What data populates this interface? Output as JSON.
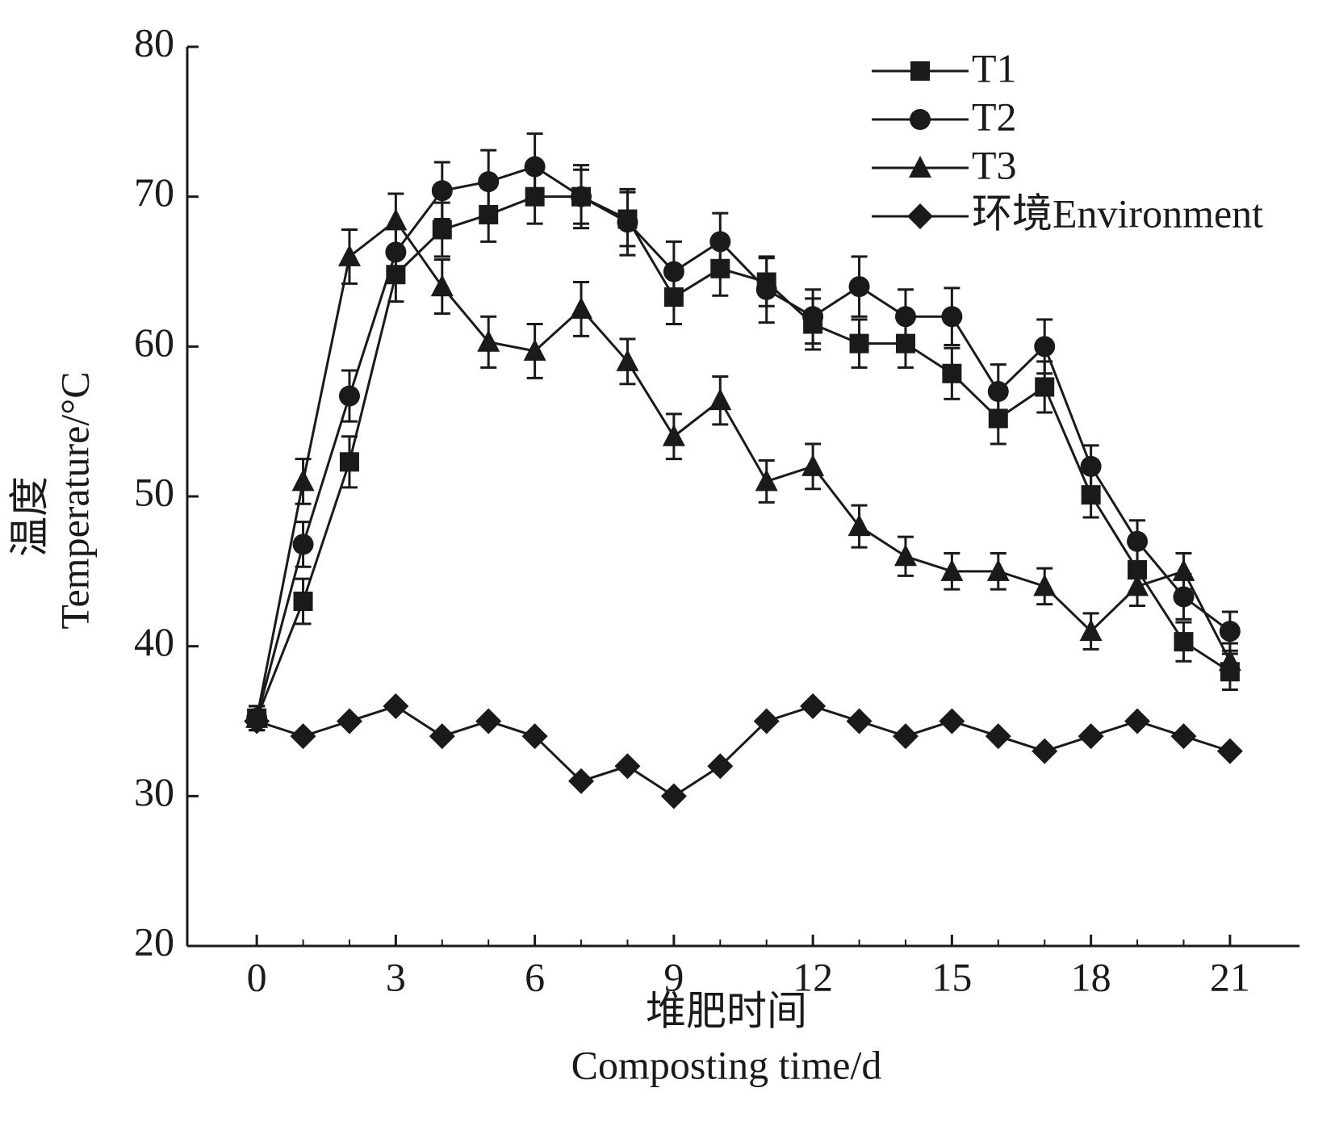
{
  "chart_data": {
    "type": "line",
    "ylabel": [
      "温度",
      "Temperature/°C"
    ],
    "xlabel": [
      "堆肥时间",
      "Composting time/d"
    ],
    "x": [
      0,
      1,
      2,
      3,
      4,
      5,
      6,
      7,
      8,
      9,
      10,
      11,
      12,
      13,
      14,
      15,
      16,
      17,
      18,
      19,
      20,
      21
    ],
    "xlim": [
      -1.5,
      22.5
    ],
    "xticks": [
      0,
      3,
      6,
      9,
      12,
      15,
      18,
      21
    ],
    "ylim": [
      20,
      80
    ],
    "yticks": [
      20,
      30,
      40,
      50,
      60,
      70,
      80
    ],
    "grid": false,
    "legend": "upper right",
    "series": [
      {
        "name": "T1",
        "color": "#1a1a1a",
        "marker": "square",
        "values": [
          35.2,
          43,
          52.3,
          64.8,
          67.8,
          68.8,
          70,
          70,
          68.5,
          63.3,
          65.2,
          64.3,
          61.5,
          60.2,
          60.2,
          58.2,
          55.2,
          57.3,
          50.1,
          45.1,
          40.3,
          38.3
        ],
        "errors": [
          0.8,
          1.5,
          1.7,
          1.8,
          1.8,
          1.8,
          1.8,
          1.8,
          1.8,
          1.8,
          1.8,
          1.6,
          1.7,
          1.6,
          1.6,
          1.7,
          1.7,
          1.7,
          1.5,
          1.5,
          1.3,
          1.2
        ]
      },
      {
        "name": "T2",
        "color": "#1a1a1a",
        "marker": "circle",
        "values": [
          35.2,
          46.8,
          56.7,
          66.3,
          70.4,
          71,
          72,
          70,
          68.3,
          65,
          67,
          63.8,
          62,
          64,
          62,
          62,
          57,
          60,
          52,
          47,
          43.3,
          41
        ],
        "errors": [
          0.8,
          1.5,
          1.7,
          1.8,
          1.9,
          2.1,
          2.2,
          2.1,
          2.2,
          2,
          1.9,
          2.2,
          1.8,
          2,
          1.8,
          1.9,
          1.8,
          1.8,
          1.4,
          1.4,
          1.5,
          1.3
        ]
      },
      {
        "name": "T3",
        "color": "#1a1a1a",
        "marker": "triangle",
        "values": [
          35.2,
          51,
          66,
          68.4,
          64,
          60.3,
          59.7,
          62.5,
          59,
          54,
          56.4,
          51,
          52,
          48,
          46,
          45,
          45,
          44,
          41,
          44,
          45,
          39
        ],
        "errors": [
          0.8,
          1.5,
          1.8,
          1.8,
          1.8,
          1.7,
          1.8,
          1.8,
          1.5,
          1.5,
          1.6,
          1.4,
          1.5,
          1.4,
          1.3,
          1.2,
          1.2,
          1.2,
          1.2,
          1.3,
          1.2,
          1.2
        ]
      },
      {
        "name": "环境Environment",
        "color": "#1a1a1a",
        "marker": "diamond",
        "values": [
          35,
          34,
          35,
          36,
          34,
          35,
          34,
          31,
          32,
          30,
          32,
          35,
          36,
          35,
          34,
          35,
          34,
          33,
          34,
          35,
          34,
          33
        ]
      }
    ]
  }
}
